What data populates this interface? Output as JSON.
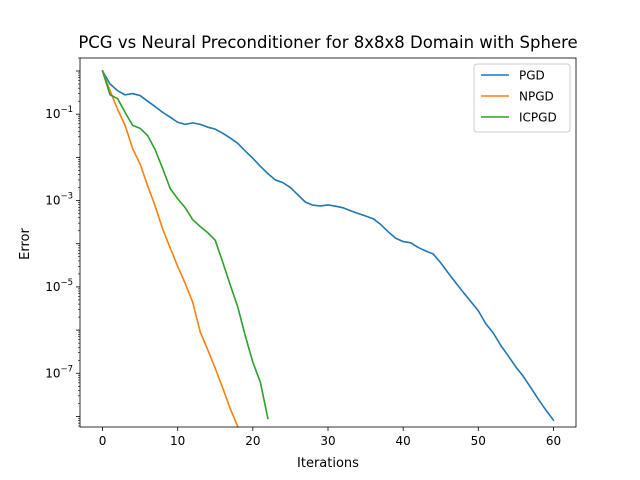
{
  "chart_data": {
    "type": "line",
    "title": "PCG vs Neural Preconditioner for 8x8x8 Domain with Sphere",
    "xlabel": "Iterations",
    "ylabel": "Error",
    "yscale": "log",
    "xlim": [
      -3,
      63
    ],
    "ylim": [
      5.7e-09,
      2.0
    ],
    "xticks": [
      0,
      10,
      20,
      30,
      40,
      50,
      60
    ],
    "xtick_labels": [
      "0",
      "10",
      "20",
      "30",
      "40",
      "50",
      "60"
    ],
    "yticks": [
      1e-07,
      1e-05,
      0.001,
      0.1
    ],
    "ytick_labels": [
      {
        "base": "10",
        "exp": "−7"
      },
      {
        "base": "10",
        "exp": "−5"
      },
      {
        "base": "10",
        "exp": "−3"
      },
      {
        "base": "10",
        "exp": "−1"
      }
    ],
    "grid": false,
    "legend_position": "top-right",
    "series": [
      {
        "name": "PGD",
        "color": "#1f77b4",
        "x": [
          0,
          1,
          2,
          3,
          4,
          5,
          6,
          7,
          8,
          9,
          10,
          11,
          12,
          13,
          14,
          15,
          16,
          17,
          18,
          19,
          20,
          21,
          22,
          23,
          24,
          25,
          26,
          27,
          28,
          29,
          30,
          31,
          32,
          33,
          34,
          35,
          36,
          37,
          38,
          39,
          40,
          41,
          42,
          43,
          44,
          45,
          46,
          47,
          48,
          49,
          50,
          51,
          52,
          53,
          54,
          55,
          56,
          57,
          58,
          59,
          60
        ],
        "y": [
          1.0,
          0.5,
          0.35,
          0.28,
          0.3,
          0.27,
          0.2,
          0.15,
          0.11,
          0.085,
          0.065,
          0.058,
          0.063,
          0.058,
          0.05,
          0.045,
          0.036,
          0.028,
          0.021,
          0.014,
          0.0095,
          0.0062,
          0.0042,
          0.003,
          0.0026,
          0.002,
          0.00135,
          0.00092,
          0.00078,
          0.00075,
          0.00079,
          0.00074,
          0.00068,
          0.00058,
          0.0005,
          0.00044,
          0.00038,
          0.00028,
          0.00019,
          0.000135,
          0.000112,
          0.000105,
          8.2e-05,
          6.8e-05,
          5.8e-05,
          3.6e-05,
          2.1e-05,
          1.25e-05,
          7.5e-06,
          4.6e-06,
          2.8e-06,
          1.4e-06,
          8.5e-07,
          4.4e-07,
          2.5e-07,
          1.4e-07,
          8.4e-08,
          4.6e-08,
          2.5e-08,
          1.4e-08,
          8.2e-09
        ]
      },
      {
        "name": "NPGD",
        "color": "#ff7f0e",
        "x": [
          0,
          1,
          2,
          3,
          4,
          5,
          6,
          7,
          8,
          9,
          10,
          11,
          12,
          13,
          14,
          15,
          16,
          17,
          18
        ],
        "y": [
          1.0,
          0.35,
          0.13,
          0.055,
          0.016,
          0.007,
          0.0022,
          0.00075,
          0.00022,
          8e-05,
          3e-05,
          1.2e-05,
          4.4e-06,
          9e-07,
          3.5e-07,
          1.3e-07,
          4.5e-08,
          1.5e-08,
          5.8e-09
        ]
      },
      {
        "name": "ICPGD",
        "color": "#2ca02c",
        "x": [
          0,
          1,
          2,
          3,
          4,
          5,
          6,
          7,
          8,
          9,
          10,
          11,
          12,
          13,
          14,
          15,
          16,
          17,
          18,
          19,
          20,
          21,
          22
        ],
        "y": [
          1.0,
          0.28,
          0.23,
          0.11,
          0.055,
          0.047,
          0.032,
          0.015,
          0.0055,
          0.0019,
          0.0011,
          0.00068,
          0.00036,
          0.00025,
          0.00018,
          0.00012,
          3.7e-05,
          1.1e-05,
          3.4e-06,
          7.3e-07,
          1.8e-07,
          6.2e-08,
          9e-09
        ]
      }
    ]
  }
}
